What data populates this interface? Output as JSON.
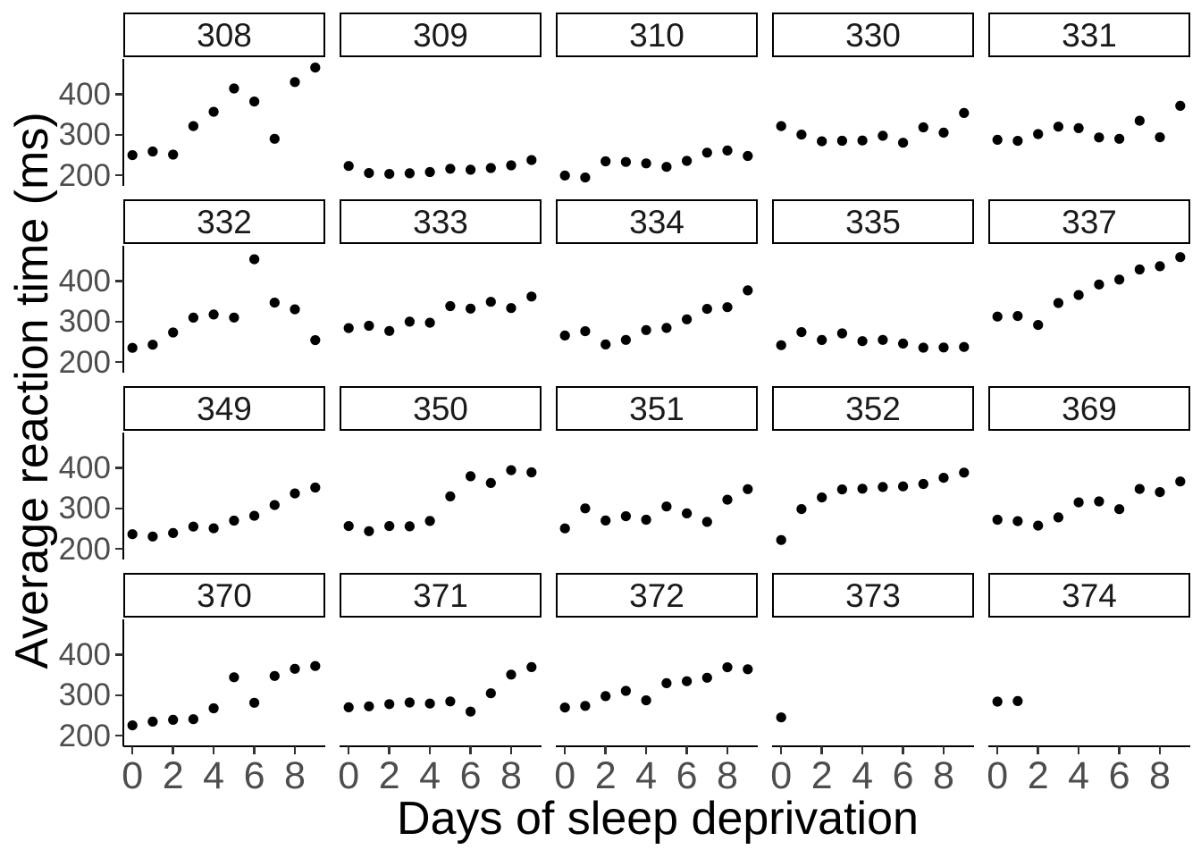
{
  "chart_data": {
    "type": "scatter",
    "title": "",
    "xlabel": "Days of sleep deprivation",
    "ylabel": "Average reaction time (ms)",
    "facet_variable": "Subject",
    "facet_layout": {
      "rows": 4,
      "cols": 5
    },
    "x_ticks": [
      0,
      2,
      4,
      6,
      8
    ],
    "y_ticks": [
      200,
      300,
      400
    ],
    "xlim": [
      -0.45,
      9.45
    ],
    "ylim": [
      173,
      488
    ],
    "grid": "off",
    "legend": "none",
    "point_color": "#000000",
    "axis_line_color": "#000000",
    "tick_color": "#333333",
    "tick_label_color": "#4d4d4d",
    "strip_border_color": "#000000",
    "strip_text_color": "#1a1a1a",
    "facets": [
      {
        "subject": "308",
        "days": [
          0,
          1,
          2,
          3,
          4,
          5,
          6,
          7,
          8,
          9
        ],
        "values": [
          249.6,
          258.7,
          250.8,
          321.4,
          356.9,
          414.7,
          382.2,
          290.1,
          430.6,
          466.4
        ]
      },
      {
        "subject": "309",
        "days": [
          0,
          1,
          2,
          3,
          4,
          5,
          6,
          7,
          8,
          9
        ],
        "values": [
          222.7,
          205.3,
          203.0,
          204.7,
          207.7,
          216.0,
          213.6,
          217.7,
          224.3,
          237.3
        ]
      },
      {
        "subject": "310",
        "days": [
          0,
          1,
          2,
          3,
          4,
          5,
          6,
          7,
          8,
          9
        ],
        "values": [
          199.1,
          194.3,
          234.3,
          232.8,
          229.3,
          220.5,
          235.4,
          255.8,
          261.0,
          247.5
        ]
      },
      {
        "subject": "330",
        "days": [
          0,
          1,
          2,
          3,
          4,
          5,
          6,
          7,
          8,
          9
        ],
        "values": [
          321.5,
          300.4,
          283.9,
          285.1,
          285.8,
          297.6,
          280.2,
          318.3,
          305.3,
          354.0
        ]
      },
      {
        "subject": "331",
        "days": [
          0,
          1,
          2,
          3,
          4,
          5,
          6,
          7,
          8,
          9
        ],
        "values": [
          287.6,
          285.0,
          301.8,
          320.1,
          316.3,
          293.3,
          290.1,
          334.8,
          293.7,
          371.6
        ]
      },
      {
        "subject": "332",
        "days": [
          0,
          1,
          2,
          3,
          4,
          5,
          6,
          7,
          8,
          9
        ],
        "values": [
          234.9,
          242.8,
          273.0,
          309.8,
          317.5,
          310.0,
          454.2,
          346.8,
          330.3,
          253.9
        ]
      },
      {
        "subject": "333",
        "days": [
          0,
          1,
          2,
          3,
          4,
          5,
          6,
          7,
          8,
          9
        ],
        "values": [
          283.8,
          289.6,
          276.8,
          299.8,
          297.2,
          338.2,
          332.0,
          348.8,
          333.4,
          362.0
        ]
      },
      {
        "subject": "334",
        "days": [
          0,
          1,
          2,
          3,
          4,
          5,
          6,
          7,
          8,
          9
        ],
        "values": [
          265.5,
          276.2,
          243.4,
          254.7,
          279.0,
          284.2,
          305.5,
          331.5,
          335.7,
          377.3
        ]
      },
      {
        "subject": "335",
        "days": [
          0,
          1,
          2,
          3,
          4,
          5,
          6,
          7,
          8,
          9
        ],
        "values": [
          241.6,
          273.9,
          254.5,
          270.8,
          251.5,
          254.6,
          245.5,
          235.3,
          235.8,
          237.2
        ]
      },
      {
        "subject": "337",
        "days": [
          0,
          1,
          2,
          3,
          4,
          5,
          6,
          7,
          8,
          9
        ],
        "values": [
          312.4,
          313.8,
          291.6,
          346.1,
          365.7,
          391.8,
          403.9,
          428.9,
          436.9,
          459.5
        ]
      },
      {
        "subject": "349",
        "days": [
          0,
          1,
          2,
          3,
          4,
          5,
          6,
          7,
          8,
          9
        ],
        "values": [
          236.1,
          230.3,
          238.9,
          254.9,
          250.7,
          269.8,
          281.6,
          308.1,
          336.9,
          351.6
        ]
      },
      {
        "subject": "350",
        "days": [
          0,
          1,
          2,
          3,
          4,
          5,
          6,
          7,
          8,
          9
        ],
        "values": [
          256.3,
          243.5,
          256.2,
          255.5,
          268.9,
          329.7,
          379.4,
          362.9,
          394.5,
          389.1
        ]
      },
      {
        "subject": "351",
        "days": [
          0,
          1,
          2,
          3,
          4,
          5,
          6,
          7,
          8,
          9
        ],
        "values": [
          250.5,
          300.1,
          269.9,
          280.6,
          271.8,
          304.6,
          287.7,
          266.6,
          321.5,
          347.6
        ]
      },
      {
        "subject": "352",
        "days": [
          0,
          1,
          2,
          3,
          4,
          5,
          6,
          7,
          8,
          9
        ],
        "values": [
          221.7,
          298.2,
          326.9,
          346.9,
          348.7,
          352.8,
          354.4,
          360.4,
          375.6,
          388.5
        ]
      },
      {
        "subject": "369",
        "days": [
          0,
          1,
          2,
          3,
          4,
          5,
          6,
          7,
          8,
          9
        ],
        "values": [
          271.9,
          268.4,
          257.2,
          277.7,
          314.8,
          317.2,
          298.1,
          348.1,
          340.3,
          366.5
        ]
      },
      {
        "subject": "370",
        "days": [
          0,
          1,
          2,
          3,
          4,
          5,
          6,
          7,
          8,
          9
        ],
        "values": [
          225.3,
          234.5,
          238.9,
          240.5,
          267.5,
          344.2,
          281.1,
          347.6,
          365.2,
          372.2
        ]
      },
      {
        "subject": "371",
        "days": [
          0,
          1,
          2,
          3,
          4,
          5,
          6,
          7,
          8,
          9
        ],
        "values": [
          269.9,
          272.4,
          277.9,
          281.8,
          279.2,
          284.5,
          259.3,
          304.6,
          350.8,
          369.5
        ]
      },
      {
        "subject": "372",
        "days": [
          0,
          1,
          2,
          3,
          4,
          5,
          6,
          7,
          8,
          9
        ],
        "values": [
          269.4,
          273.5,
          297.6,
          310.6,
          287.2,
          329.6,
          334.5,
          343.2,
          369.1,
          364.1
        ]
      },
      {
        "subject": "373",
        "days": [
          0
        ],
        "values": [
          245.0
        ]
      },
      {
        "subject": "374",
        "days": [
          0,
          1
        ],
        "values": [
          284.0,
          285.5
        ]
      }
    ]
  }
}
